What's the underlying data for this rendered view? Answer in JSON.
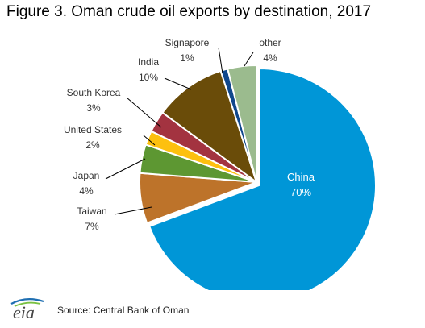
{
  "logo_text": "eia",
  "source": "Source: Central Bank of Oman",
  "chart_data": {
    "type": "pie",
    "title": "Figure 3. Oman crude oil exports by destination, 2017",
    "unit": "%",
    "slices": [
      {
        "name": "China",
        "value": 70,
        "label": "70%",
        "color": "#0096d7"
      },
      {
        "name": "Taiwan",
        "value": 7,
        "label": "7%",
        "color": "#bd732a"
      },
      {
        "name": "Japan",
        "value": 4,
        "label": "4%",
        "color": "#5d9732"
      },
      {
        "name": "United States",
        "value": 2,
        "label": "2%",
        "color": "#fdc00f"
      },
      {
        "name": "South Korea",
        "value": 3,
        "label": "3%",
        "color": "#a33340"
      },
      {
        "name": "India",
        "value": 10,
        "label": "10%",
        "color": "#6a4c09"
      },
      {
        "name": "Signapore",
        "value": 1,
        "label": "1%",
        "color": "#10478c"
      },
      {
        "name": "other",
        "value": 4,
        "label": "4%",
        "color": "#9bbb8e"
      }
    ]
  }
}
